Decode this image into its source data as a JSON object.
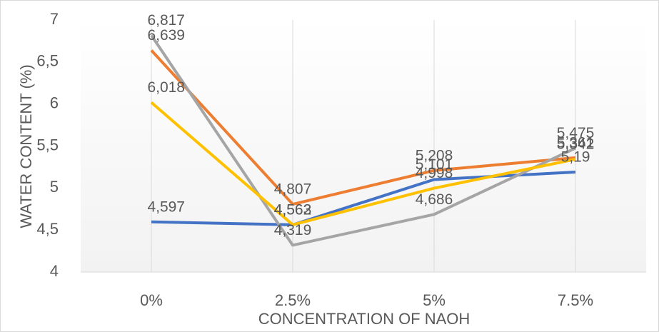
{
  "chart_data": {
    "type": "line",
    "x_label": "CONCENTRATION OF NAOH",
    "y_label": "WATER CONTENT (%)",
    "categories": [
      "0%",
      "2.5%",
      "5%",
      "7.5%"
    ],
    "series": [
      {
        "color": "#4472c4",
        "values": [
          4.597,
          4.562,
          5.101,
          5.19
        ],
        "value_labels": [
          "4,597",
          "4,562",
          "5,101",
          "5,19"
        ]
      },
      {
        "color": "#ed7d31",
        "values": [
          6.639,
          4.807,
          5.208,
          5.361
        ],
        "value_labels": [
          "6,639",
          "4,807",
          "5,208",
          "5,361"
        ]
      },
      {
        "color": "#a5a5a5",
        "values": [
          6.817,
          4.319,
          4.686,
          5.475
        ],
        "value_labels": [
          "6,817",
          "4,319",
          "4,686",
          "5,475"
        ]
      },
      {
        "color": "#ffc000",
        "values": [
          6.018,
          4.563,
          4.998,
          5.342
        ],
        "value_labels": [
          "6,018",
          "4,563",
          "4,998",
          "5,342"
        ]
      }
    ],
    "ylim": [
      4,
      7
    ],
    "yticks": [
      4,
      {
        "value": 4.5,
        "label": "4,5"
      },
      5,
      {
        "value": 5.5,
        "label": "5,5"
      },
      6,
      {
        "value": 6.5,
        "label": "6,5"
      },
      7
    ],
    "grid": "x"
  }
}
